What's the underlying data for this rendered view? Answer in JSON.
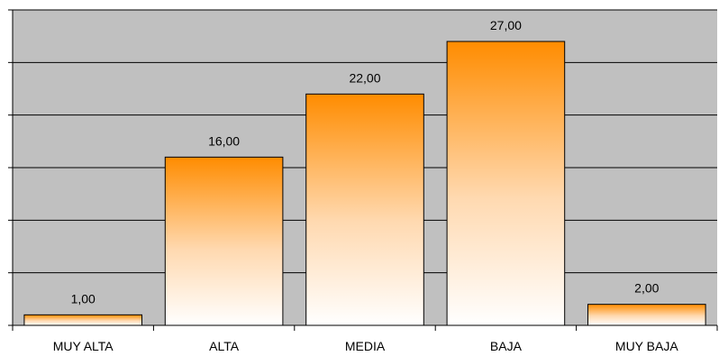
{
  "chart_data": {
    "type": "bar",
    "categories": [
      "MUY ALTA",
      "ALTA",
      "MEDIA",
      "BAJA",
      "MUY BAJA"
    ],
    "values": [
      1,
      16,
      22,
      27,
      2
    ],
    "data_labels": [
      "1,00",
      "16,00",
      "22,00",
      "27,00",
      "2,00"
    ],
    "ylim": [
      0,
      30
    ],
    "grid": true,
    "y_tick_labels_shown": false,
    "legend": "none",
    "colors": {
      "plot_background": "#c0c0c0",
      "gridline": "#000000",
      "bar_top": "#ff8c00",
      "bar_bottom": "#ffffff",
      "bar_border": "#000000"
    }
  }
}
